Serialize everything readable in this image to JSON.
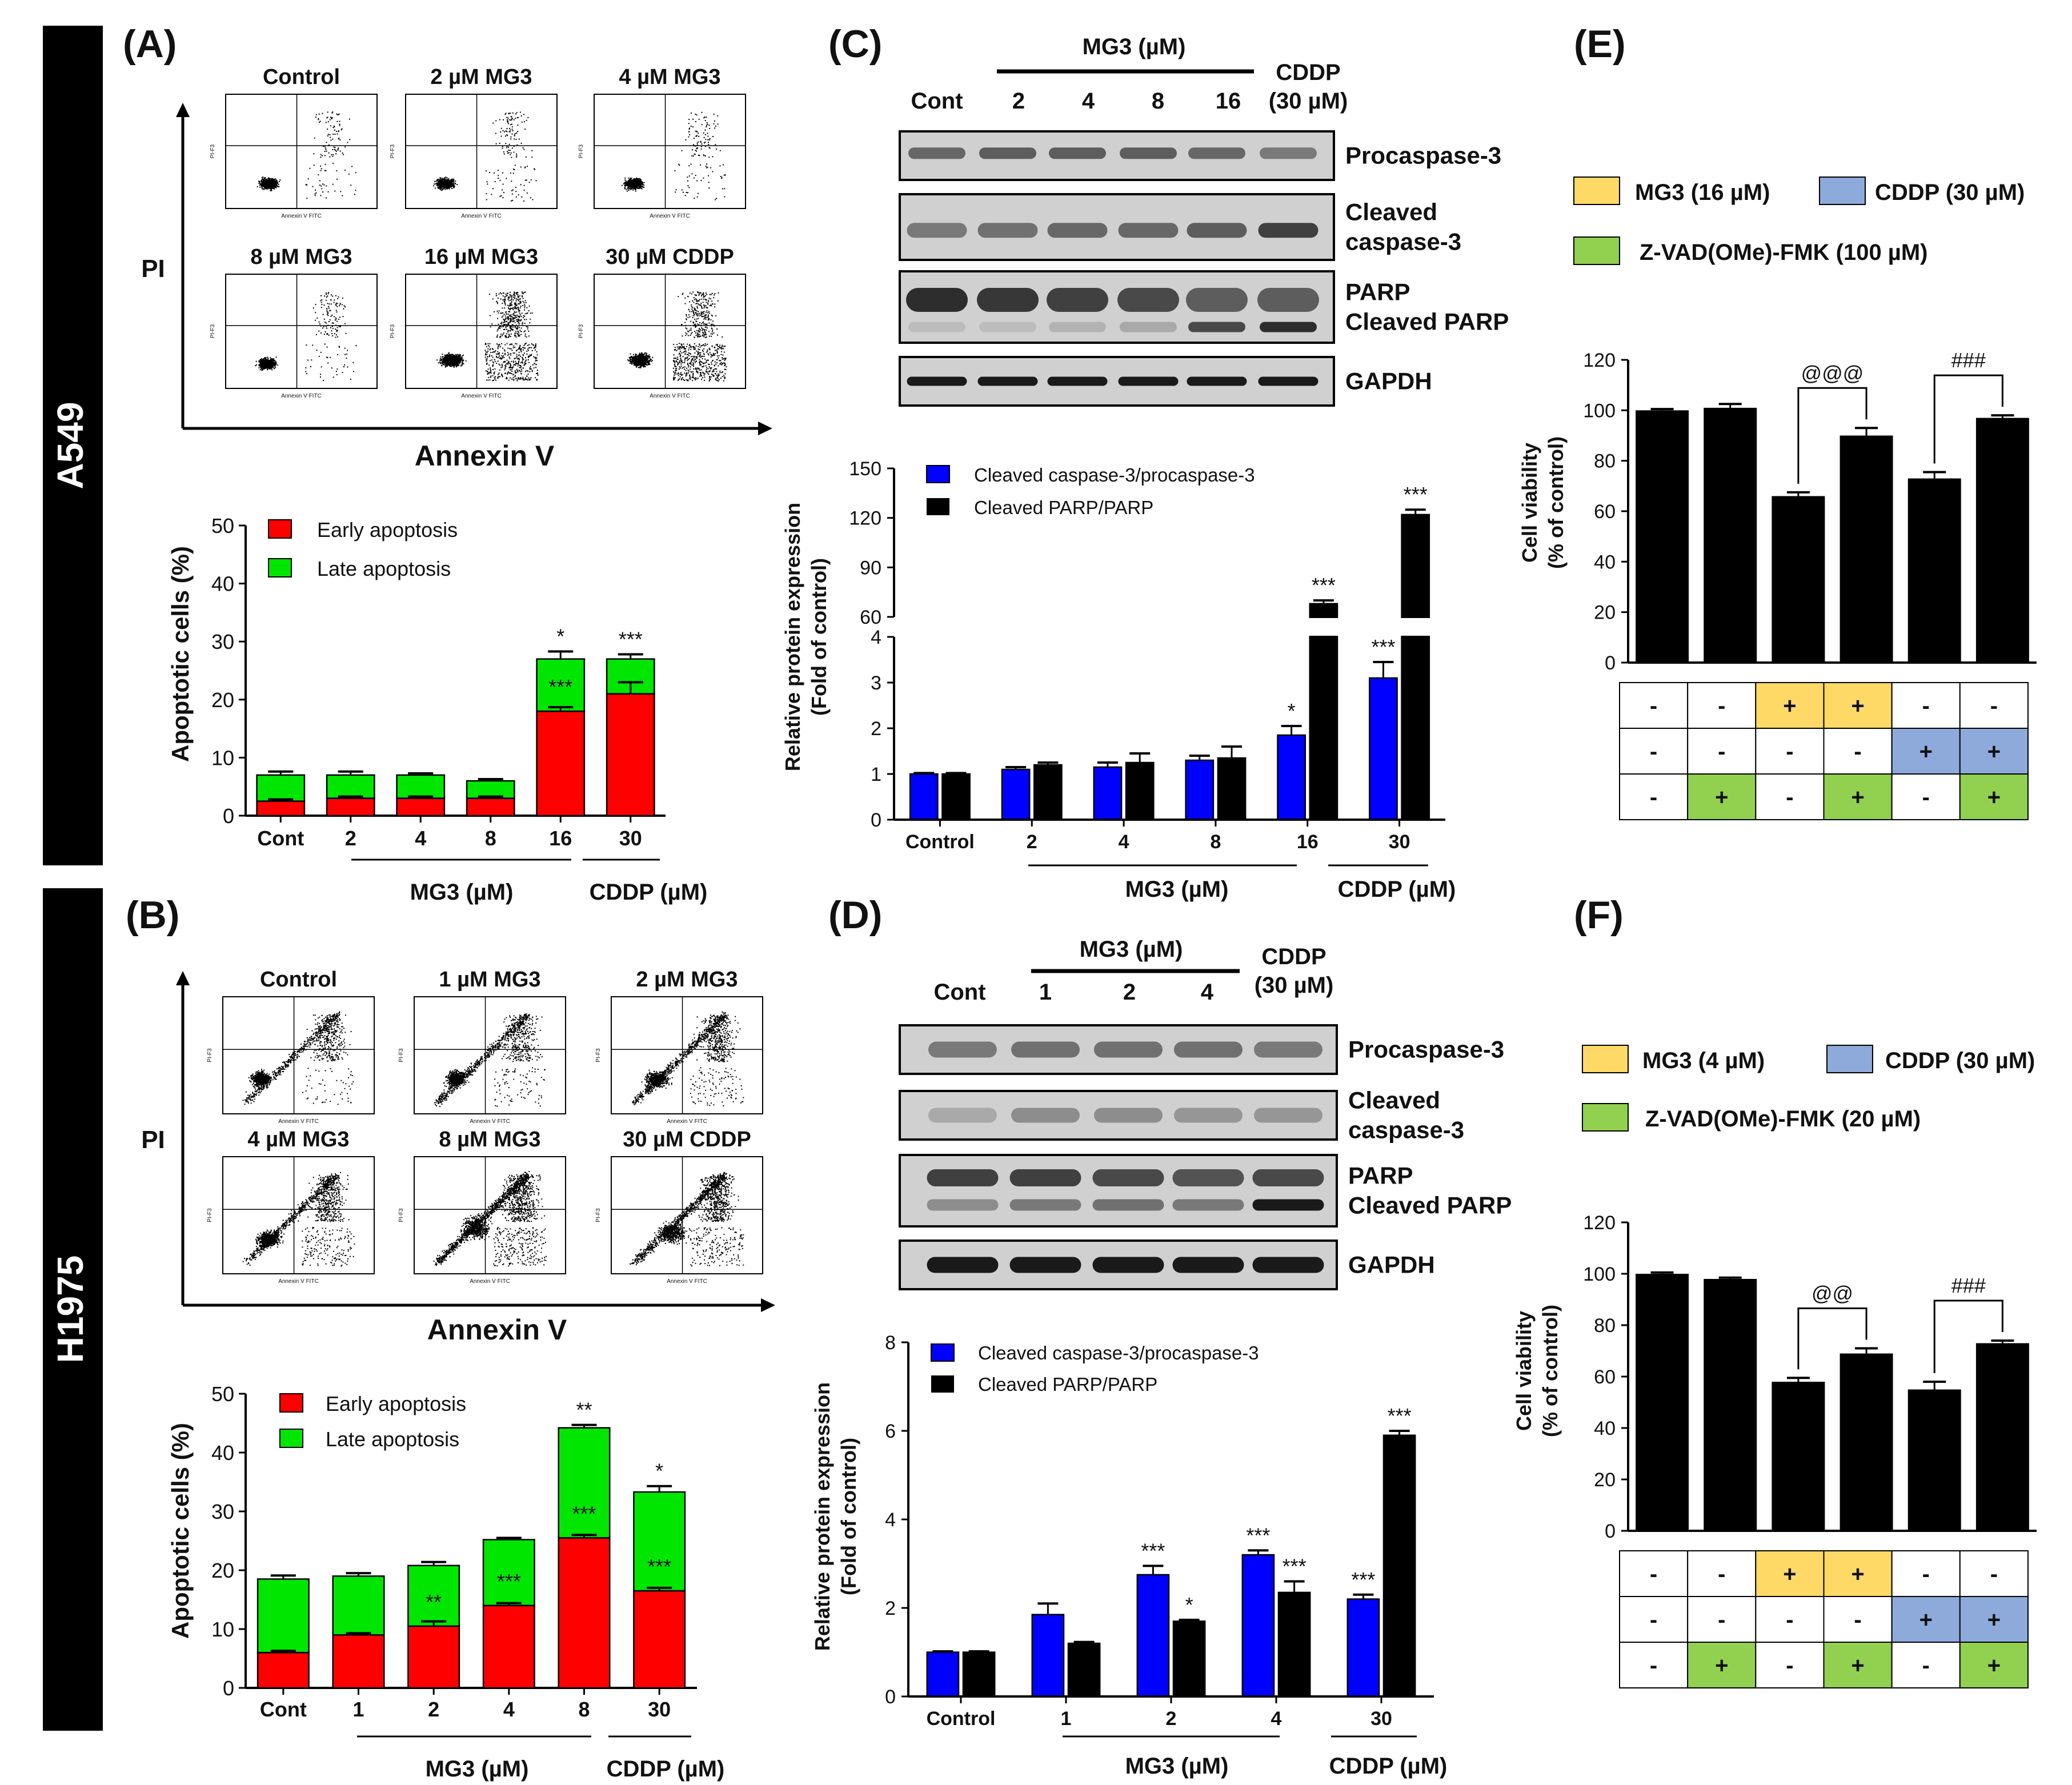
{
  "cell_lines": [
    "A549",
    "H1975"
  ],
  "panels": {
    "A": {
      "label": "(A)",
      "flow": {
        "titles": [
          "Control",
          "2 µM MG3",
          "4 µM MG3",
          "8 µM MG3",
          "16 µM MG3",
          "30 µM CDDP"
        ],
        "x_axis": "Annexin V",
        "y_axis": "PI",
        "mini_xlabel": "Annexin V FITC",
        "mini_ylabel": "PI-F3"
      },
      "legend": [
        "Early apoptosis",
        "Late apoptosis"
      ],
      "ylabel": "Apoptotic cells (%)",
      "group_labels": [
        "MG3 (µM)",
        "CDDP (µM)"
      ]
    },
    "B": {
      "label": "(B)",
      "flow": {
        "titles": [
          "Control",
          "1 µM MG3",
          "2 µM MG3",
          "4 µM MG3",
          "8 µM MG3",
          "30 µM CDDP"
        ],
        "x_axis": "Annexin V",
        "y_axis": "PI",
        "mini_xlabel": "Annexin V FITC",
        "mini_ylabel": "PI-F3"
      },
      "legend": [
        "Early apoptosis",
        "Late apoptosis"
      ],
      "ylabel": "Apoptotic cells (%)",
      "group_labels": [
        "MG3 (µM)",
        "CDDP (µM)"
      ]
    },
    "C": {
      "label": "(C)",
      "blot_header": {
        "group": "MG3 (µM)",
        "lanes": [
          "Cont",
          "2",
          "4",
          "8",
          "16"
        ],
        "cddp": [
          "CDDP",
          "(30 µM)"
        ]
      },
      "blot_rows": [
        "Procaspase-3",
        "Cleaved caspase-3",
        "PARP",
        "Cleaved PARP",
        "GAPDH"
      ],
      "blot_row_lines": [
        [
          "Procaspase-3"
        ],
        [
          "Cleaved",
          "caspase-3"
        ],
        [
          "PARP",
          "Cleaved PARP"
        ],
        [
          "GAPDH"
        ]
      ],
      "legend": [
        "Cleaved caspase-3/procaspase-3",
        "Cleaved PARP/PARP"
      ],
      "ylabel": [
        "Relative protein expression",
        "(Fold of control)"
      ],
      "group_labels": [
        "MG3 (µM)",
        "CDDP (µM)"
      ]
    },
    "D": {
      "label": "(D)",
      "blot_header": {
        "group": "MG3 (µM)",
        "lanes": [
          "Cont",
          "1",
          "2",
          "4"
        ],
        "cddp": [
          "CDDP",
          "(30 µM)"
        ]
      },
      "blot_rows": [
        "Procaspase-3",
        "Cleaved caspase-3",
        "PARP",
        "Cleaved PARP",
        "GAPDH"
      ],
      "blot_row_lines": [
        [
          "Procaspase-3"
        ],
        [
          "Cleaved",
          "caspase-3"
        ],
        [
          "PARP",
          "Cleaved PARP"
        ],
        [
          "GAPDH"
        ]
      ],
      "legend": [
        "Cleaved caspase-3/procaspase-3",
        "Cleaved PARP/PARP"
      ],
      "ylabel": [
        "Relative protein expression",
        "(Fold of control)"
      ],
      "group_labels": [
        "MG3 (µM)",
        "CDDP (µM)"
      ]
    },
    "E": {
      "label": "(E)",
      "legend": [
        "MG3 (16 µM)",
        "CDDP (30 µM)",
        "Z-VAD(OMe)-FMK (100 µM)"
      ],
      "ylabel": [
        "Cell viability",
        "(% of control)"
      ],
      "treatment_table": [
        [
          "-",
          "-",
          "+",
          "+",
          "-",
          "-"
        ],
        [
          "-",
          "-",
          "-",
          "-",
          "+",
          "+"
        ],
        [
          "-",
          "+",
          "-",
          "+",
          "-",
          "+"
        ]
      ]
    },
    "F": {
      "label": "(F)",
      "legend": [
        "MG3 (4 µM)",
        "CDDP (30 µM)",
        "Z-VAD(OMe)-FMK (20 µM)"
      ],
      "ylabel": [
        "Cell viability",
        "(% of control)"
      ],
      "treatment_table": [
        [
          "-",
          "-",
          "+",
          "+",
          "-",
          "-"
        ],
        [
          "-",
          "-",
          "-",
          "-",
          "+",
          "+"
        ],
        [
          "-",
          "+",
          "-",
          "+",
          "-",
          "+"
        ]
      ]
    }
  },
  "colors": {
    "early": "#ff0000",
    "late": "#00e600",
    "caspase": "#0000ff",
    "parp": "#000000",
    "mg3": "#ffd966",
    "cddp": "#8eaadb",
    "zvad": "#92d050"
  },
  "chart_data": [
    {
      "id": "A",
      "type": "bar",
      "stacked": true,
      "categories": [
        "Cont",
        "2",
        "4",
        "8",
        "16",
        "30"
      ],
      "series": [
        {
          "name": "Early apoptosis",
          "values": [
            2.5,
            3,
            3,
            3,
            18,
            21
          ],
          "errors": [
            0.3,
            0.3,
            0.3,
            0.3,
            0.7,
            2.0
          ]
        },
        {
          "name": "Late apoptosis",
          "values": [
            4.5,
            4,
            4,
            3,
            9,
            6
          ],
          "errors": [
            0.6,
            0.6,
            0.3,
            0.3,
            1.3,
            0.8
          ]
        }
      ],
      "significance": [
        [
          "",
          "",
          "",
          "",
          "***",
          ""
        ],
        [
          "",
          "",
          "",
          "",
          "*",
          "***"
        ]
      ],
      "ylabel": "Apoptotic cells (%)",
      "ylim": [
        0,
        50
      ],
      "yticks": [
        0,
        10,
        20,
        30,
        40,
        50
      ]
    },
    {
      "id": "B",
      "type": "bar",
      "stacked": true,
      "categories": [
        "Cont",
        "1",
        "2",
        "4",
        "8",
        "30"
      ],
      "series": [
        {
          "name": "Early apoptosis",
          "values": [
            6,
            9,
            10.5,
            14,
            25.5,
            16.5
          ],
          "errors": [
            0.3,
            0.3,
            0.8,
            0.4,
            0.5,
            0.5
          ]
        },
        {
          "name": "Late apoptosis",
          "values": [
            12.5,
            10,
            10.3,
            11.2,
            18.7,
            16.8
          ],
          "errors": [
            0.6,
            0.5,
            0.6,
            0.3,
            0.5,
            1.0
          ]
        }
      ],
      "significance": [
        [
          "",
          "",
          "**",
          "***",
          "***",
          "***"
        ],
        [
          "",
          "",
          "",
          "",
          "**",
          "*"
        ]
      ],
      "ylabel": "Apoptotic cells (%)",
      "ylim": [
        0,
        50
      ],
      "yticks": [
        0,
        10,
        20,
        30,
        40,
        50
      ]
    },
    {
      "id": "C",
      "type": "bar",
      "broken_axis": true,
      "categories": [
        "Control",
        "2",
        "4",
        "8",
        "16",
        "30"
      ],
      "series": [
        {
          "name": "Cleaved caspase-3/procaspase-3",
          "values": [
            1.0,
            1.1,
            1.15,
            1.3,
            1.85,
            3.1
          ],
          "errors": [
            0.02,
            0.05,
            0.1,
            0.1,
            0.2,
            0.35
          ]
        },
        {
          "name": "Cleaved PARP/PARP",
          "values": [
            1.0,
            1.2,
            1.25,
            1.35,
            68,
            122
          ],
          "errors": [
            0.02,
            0.05,
            0.2,
            0.25,
            2,
            3
          ]
        }
      ],
      "significance": [
        [
          "",
          "",
          "",
          "",
          "*",
          "***"
        ],
        [
          "",
          "",
          "",
          "",
          "***",
          "***"
        ]
      ],
      "ylabel": "Relative protein expression (Fold of control)",
      "lower_ylim": [
        0,
        4
      ],
      "lower_yticks": [
        0,
        1,
        2,
        3,
        4
      ],
      "upper_ylim": [
        60,
        150
      ],
      "upper_yticks": [
        60,
        90,
        120,
        150
      ]
    },
    {
      "id": "D",
      "type": "bar",
      "categories": [
        "Control",
        "1",
        "2",
        "4",
        "30"
      ],
      "series": [
        {
          "name": "Cleaved caspase-3/procaspase-3",
          "values": [
            1.0,
            1.85,
            2.75,
            3.2,
            2.2
          ],
          "errors": [
            0.02,
            0.25,
            0.2,
            0.1,
            0.1
          ]
        },
        {
          "name": "Cleaved PARP/PARP",
          "values": [
            1.0,
            1.2,
            1.7,
            2.35,
            5.9
          ],
          "errors": [
            0.02,
            0.03,
            0.03,
            0.25,
            0.1
          ]
        }
      ],
      "significance": [
        [
          "",
          "",
          "***",
          "***",
          "***"
        ],
        [
          "",
          "",
          "*",
          "***",
          "***"
        ]
      ],
      "ylabel": "Relative protein expression (Fold of control)",
      "ylim": [
        0,
        8
      ],
      "yticks": [
        0,
        2,
        4,
        6,
        8
      ]
    },
    {
      "id": "E",
      "type": "bar",
      "values": [
        100,
        101,
        66,
        90,
        73,
        97
      ],
      "errors": [
        0.5,
        1.5,
        1.5,
        3,
        2.5,
        1
      ],
      "brackets": [
        {
          "from": 2,
          "to": 3,
          "label": "@@@"
        },
        {
          "from": 4,
          "to": 5,
          "label": "###"
        }
      ],
      "ylabel": "Cell viability (% of control)",
      "ylim": [
        0,
        120
      ],
      "yticks": [
        0,
        20,
        40,
        60,
        80,
        100,
        120
      ]
    },
    {
      "id": "F",
      "type": "bar",
      "values": [
        100,
        98,
        58,
        69,
        55,
        73
      ],
      "errors": [
        0.5,
        0.5,
        1.5,
        2,
        3,
        1
      ],
      "brackets": [
        {
          "from": 2,
          "to": 3,
          "label": "@@"
        },
        {
          "from": 4,
          "to": 5,
          "label": "###"
        }
      ],
      "ylabel": "Cell viability (% of control)",
      "ylim": [
        0,
        120
      ],
      "yticks": [
        0,
        20,
        40,
        60,
        80,
        100,
        120
      ]
    }
  ]
}
